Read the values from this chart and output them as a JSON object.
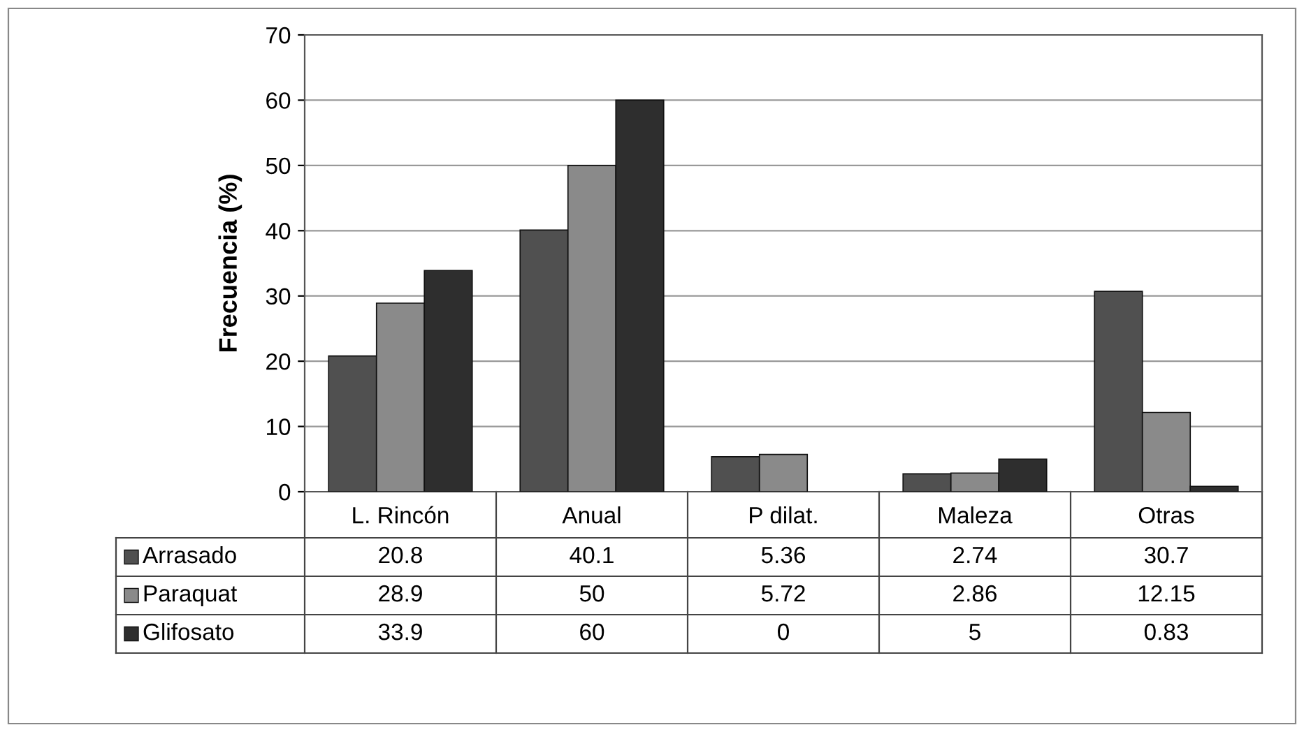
{
  "chart_data": {
    "type": "bar",
    "ylabel": "Frecuencia (%)",
    "categories": [
      "L. Rincón",
      "Anual",
      "P dilat.",
      "Maleza",
      "Otras"
    ],
    "series": [
      {
        "name": "Arrasado",
        "color": "#505050",
        "values": [
          20.8,
          40.1,
          5.36,
          2.74,
          30.7
        ]
      },
      {
        "name": "Paraquat",
        "color": "#8a8a8a",
        "values": [
          28.9,
          50,
          5.72,
          2.86,
          12.15
        ]
      },
      {
        "name": "Glifosato",
        "color": "#2e2e2e",
        "values": [
          33.9,
          60,
          0,
          5,
          0.83
        ]
      }
    ],
    "ylim": [
      0,
      70
    ],
    "yticks": [
      0,
      10,
      20,
      30,
      40,
      50,
      60,
      70
    ],
    "grid": "y",
    "data_labels": true,
    "legend": "bottom left"
  }
}
